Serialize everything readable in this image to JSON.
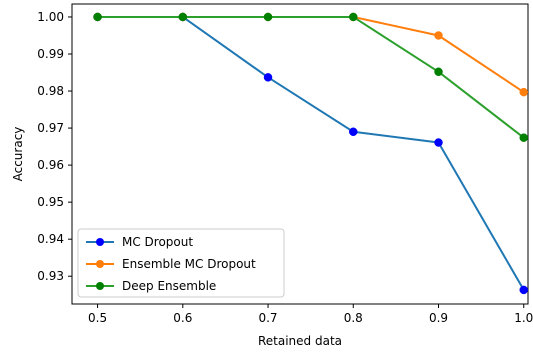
{
  "chart_data": {
    "type": "line",
    "title": "",
    "xlabel": "Retained data",
    "ylabel": "Accuracy",
    "x": [
      0.5,
      0.6,
      0.7,
      0.8,
      0.9,
      1.0
    ],
    "xticks": [
      "0.5",
      "0.6",
      "0.7",
      "0.8",
      "0.9",
      "1.0"
    ],
    "yticks": [
      "0.93",
      "0.94",
      "0.95",
      "0.96",
      "0.97",
      "0.98",
      "0.99",
      "1.00"
    ],
    "xlim": [
      0.47,
      1.005
    ],
    "ylim": [
      0.9225,
      1.0035
    ],
    "grid": false,
    "legend_position": "lower-left",
    "series": [
      {
        "name": "MC Dropout",
        "color": "#1f77b4",
        "marker_color": "#0000ff",
        "values": [
          1.0,
          1.0,
          0.9837,
          0.969,
          0.9661,
          0.9263
        ]
      },
      {
        "name": "Ensemble MC Dropout",
        "color": "#ff7f0e",
        "marker_color": "#ff7f0e",
        "values": [
          1.0,
          1.0,
          1.0,
          1.0,
          0.995,
          0.9797
        ]
      },
      {
        "name": "Deep Ensemble",
        "color": "#2ca02c",
        "marker_color": "#008000",
        "values": [
          1.0,
          1.0,
          1.0,
          1.0,
          0.9852,
          0.9674
        ]
      }
    ]
  }
}
